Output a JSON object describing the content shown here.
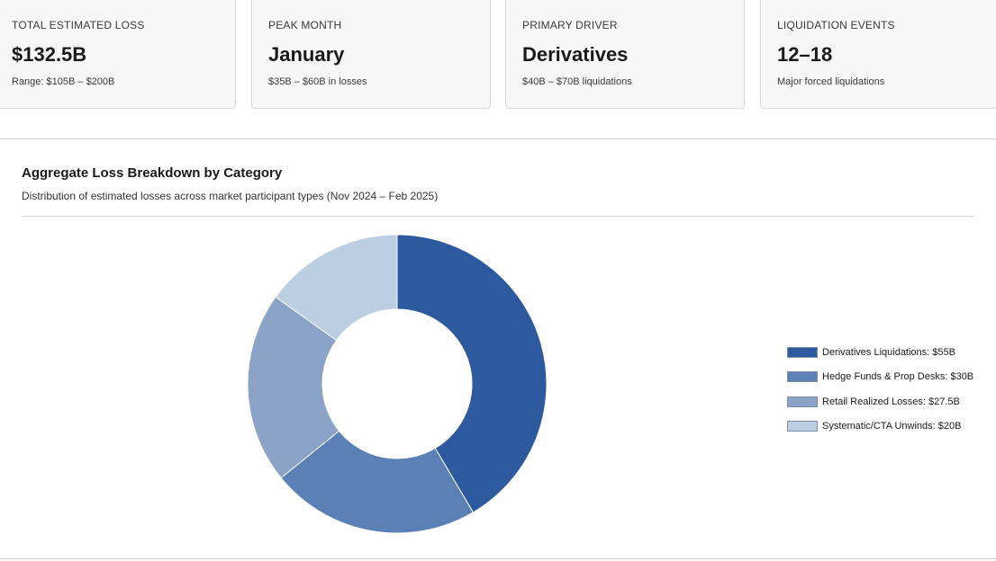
{
  "cards": [
    {
      "label": "TOTAL ESTIMATED LOSS",
      "value": "$132.5B",
      "sub": "Range: $105B – $200B"
    },
    {
      "label": "PEAK MONTH",
      "value": "January",
      "sub": "$35B – $60B in losses"
    },
    {
      "label": "PRIMARY DRIVER",
      "value": "Derivatives",
      "sub": "$40B – $70B liquidations"
    },
    {
      "label": "LIQUIDATION EVENTS",
      "value": "12–18",
      "sub": "Major forced liquidations"
    }
  ],
  "chart_data": {
    "type": "pie",
    "title": "Aggregate Loss Breakdown by Category",
    "subtitle": "Distribution of estimated losses across market participant types (Nov 2024 – Feb 2025)",
    "donut": true,
    "legend_position": "right",
    "categories": [
      "Derivatives Liquidations",
      "Hedge Funds & Prop Desks",
      "Retail Realized Losses",
      "Systematic/CTA Unwinds"
    ],
    "values": [
      55,
      30,
      27.5,
      20
    ],
    "unit": "$B",
    "colors": [
      "#2d5a9e",
      "#5b80b6",
      "#8ba3c7",
      "#bccee2"
    ],
    "legend_labels": [
      "Derivatives Liquidations: $55B",
      "Hedge Funds & Prop Desks: $30B",
      "Retail Realized Losses: $27.5B",
      "Systematic/CTA Unwinds: $20B"
    ]
  }
}
